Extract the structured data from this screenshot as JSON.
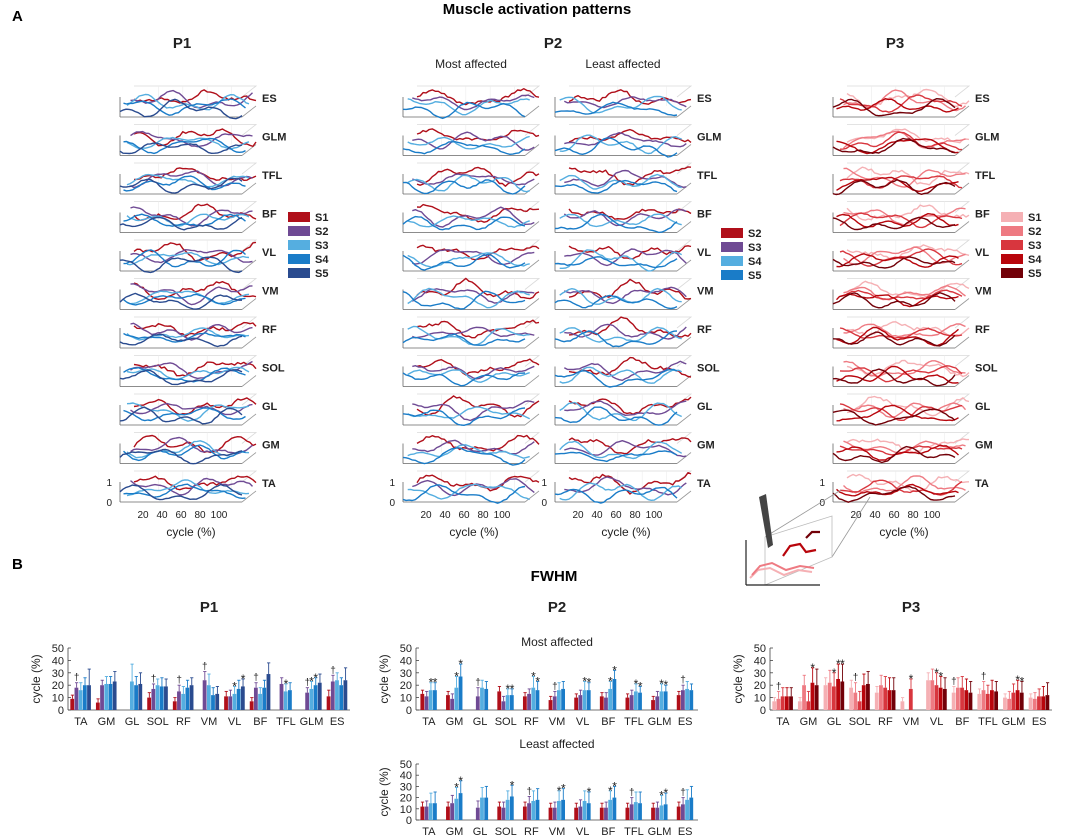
{
  "figure": {
    "section_a_letter": "A",
    "section_a_title": "Muscle activation patterns",
    "section_b_letter": "B",
    "section_b_title": "FWHM"
  },
  "chart_data": [
    {
      "id": "A-P1",
      "type": "line",
      "title": "P1",
      "subtitle": "",
      "muscles": [
        "ES",
        "GLM",
        "TFL",
        "BF",
        "VL",
        "VM",
        "RF",
        "SOL",
        "GL",
        "GM",
        "TA"
      ],
      "legend": [
        "S1",
        "S2",
        "S3",
        "S4",
        "S5"
      ],
      "xlabel": "cycle (%)",
      "xticks": [
        "20",
        "40",
        "60",
        "80",
        "100"
      ],
      "zticks": [
        "1",
        "0"
      ]
    },
    {
      "id": "A-P2-most",
      "type": "line",
      "title": "P2",
      "subtitle": "Most affected",
      "muscles": [
        "ES",
        "GLM",
        "TFL",
        "BF",
        "VL",
        "VM",
        "RF",
        "SOL",
        "GL",
        "GM",
        "TA"
      ],
      "legend": [
        "S2",
        "S3",
        "S4",
        "S5"
      ],
      "xlabel": "cycle (%)",
      "xticks": [
        "20",
        "40",
        "60",
        "80",
        "100"
      ],
      "zticks": [
        "1",
        "0"
      ]
    },
    {
      "id": "A-P2-least",
      "type": "line",
      "title": "",
      "subtitle": "Least affected",
      "muscles": [
        "ES",
        "GLM",
        "TFL",
        "BF",
        "VL",
        "VM",
        "RF",
        "SOL",
        "GL",
        "GM",
        "TA"
      ],
      "legend": [
        "S2",
        "S3",
        "S4",
        "S5"
      ],
      "xlabel": "cycle (%)",
      "xticks": [
        "20",
        "40",
        "60",
        "80",
        "100"
      ],
      "zticks": [
        "1",
        "0"
      ]
    },
    {
      "id": "A-P3",
      "type": "line",
      "title": "P3",
      "subtitle": "",
      "muscles": [
        "ES",
        "GLM",
        "TFL",
        "BF",
        "VL",
        "VM",
        "RF",
        "SOL",
        "GL",
        "GM",
        "TA"
      ],
      "legend": [
        "S1",
        "S2",
        "S3",
        "S4",
        "S5"
      ],
      "xlabel": "cycle (%)",
      "xticks": [
        "20",
        "40",
        "60",
        "80",
        "100"
      ],
      "zticks": [
        "1",
        "0"
      ]
    },
    {
      "id": "B-P1",
      "type": "bar",
      "title": "P1",
      "subtitle": "",
      "ylabel": "cycle (%)",
      "ylim": [
        0,
        50
      ],
      "yticks": [
        0,
        10,
        20,
        30,
        40,
        50
      ],
      "categories": [
        "TA",
        "GM",
        "GL",
        "SOL",
        "RF",
        "VM",
        "VL",
        "BF",
        "TFL",
        "GLM",
        "ES"
      ],
      "series": [
        {
          "name": "S1",
          "values": [
            9,
            6,
            null,
            10,
            7,
            null,
            11,
            7,
            null,
            null,
            11
          ]
        },
        {
          "name": "S2",
          "values": [
            18,
            20,
            null,
            17,
            15,
            24,
            11,
            18,
            21,
            14,
            23
          ]
        },
        {
          "name": "S3",
          "values": [
            16,
            21,
            23,
            20,
            13,
            20,
            13,
            13,
            15,
            17,
            24
          ]
        },
        {
          "name": "S4",
          "values": [
            20,
            21,
            20,
            19,
            18,
            12,
            17,
            18,
            16,
            20,
            20
          ]
        },
        {
          "name": "S5",
          "values": [
            20,
            23,
            21,
            19,
            20,
            13,
            19,
            29,
            null,
            22,
            24
          ]
        }
      ],
      "errors": [
        {
          "name": "S1",
          "values": [
            3,
            3,
            null,
            4,
            3,
            null,
            4,
            3,
            null,
            null,
            5
          ]
        },
        {
          "name": "S2",
          "values": [
            4,
            4,
            null,
            4,
            5,
            7,
            5,
            4,
            5,
            4,
            5
          ]
        },
        {
          "name": "S3",
          "values": [
            6,
            6,
            14,
            5,
            6,
            9,
            6,
            5,
            6,
            6,
            6
          ]
        },
        {
          "name": "S4",
          "values": [
            6,
            6,
            7,
            7,
            6,
            6,
            7,
            6,
            6,
            6,
            6
          ]
        },
        {
          "name": "S5",
          "values": [
            13,
            8,
            9,
            6,
            6,
            6,
            6,
            9,
            null,
            7,
            10
          ]
        }
      ],
      "annotations": [
        {
          "text": "†",
          "category": "TA",
          "series": "S2"
        },
        {
          "text": "†",
          "category": "SOL",
          "series": "S2"
        },
        {
          "text": "†",
          "category": "RF",
          "series": "S2"
        },
        {
          "text": "†",
          "category": "VM",
          "series": "S2"
        },
        {
          "text": "†",
          "category": "BF",
          "series": "S2"
        },
        {
          "text": "†",
          "category": "GLM",
          "series": "S2"
        },
        {
          "text": "†",
          "category": "ES",
          "series": "S2"
        },
        {
          "text": "*",
          "category": "VL",
          "series": "S3"
        },
        {
          "text": "*",
          "category": "VL",
          "series": "S5"
        },
        {
          "text": "*",
          "category": "TFL",
          "series": "S3"
        },
        {
          "text": "*",
          "category": "GLM",
          "series": "S3"
        },
        {
          "text": "*",
          "category": "GLM",
          "series": "S4"
        }
      ]
    },
    {
      "id": "B-P2-most",
      "type": "bar",
      "title": "P2",
      "subtitle": "Most affected",
      "ylabel": "cycle (%)",
      "ylim": [
        0,
        50
      ],
      "yticks": [
        0,
        10,
        20,
        30,
        40,
        50
      ],
      "categories": [
        "TA",
        "GM",
        "GL",
        "SOL",
        "RF",
        "VM",
        "VL",
        "BF",
        "TFL",
        "GLM",
        "ES"
      ],
      "series": [
        {
          "name": "S2",
          "values": [
            13,
            12,
            null,
            15,
            11,
            8,
            10,
            11,
            10,
            8,
            12
          ]
        },
        {
          "name": "S3",
          "values": [
            11,
            9,
            11,
            7,
            13,
            11,
            12,
            10,
            12,
            11,
            16
          ]
        },
        {
          "name": "S4",
          "values": [
            16,
            18,
            18,
            12,
            18,
            16,
            16,
            17,
            15,
            15,
            17
          ]
        },
        {
          "name": "S5",
          "values": [
            16,
            27,
            17,
            12,
            16,
            17,
            16,
            25,
            14,
            15,
            16
          ]
        }
      ],
      "errors": [
        {
          "name": "S2",
          "values": [
            3,
            3,
            null,
            4,
            3,
            3,
            3,
            3,
            3,
            3,
            3
          ]
        },
        {
          "name": "S3",
          "values": [
            4,
            4,
            7,
            4,
            4,
            4,
            4,
            4,
            4,
            4,
            4
          ]
        },
        {
          "name": "S4",
          "values": [
            6,
            9,
            6,
            5,
            9,
            6,
            7,
            6,
            6,
            6,
            6
          ]
        },
        {
          "name": "S5",
          "values": [
            6,
            10,
            6,
            5,
            7,
            6,
            6,
            7,
            5,
            5,
            5
          ]
        }
      ],
      "annotations": [
        {
          "text": "*",
          "category": "TA",
          "series": "S4"
        },
        {
          "text": "*",
          "category": "TA",
          "series": "S5"
        },
        {
          "text": "*",
          "category": "GM",
          "series": "S4"
        },
        {
          "text": "*",
          "category": "GM",
          "series": "S5"
        },
        {
          "text": "†",
          "category": "GL",
          "series": "S3"
        },
        {
          "text": "*",
          "category": "SOL",
          "series": "S4"
        },
        {
          "text": "*",
          "category": "SOL",
          "series": "S5"
        },
        {
          "text": "*",
          "category": "RF",
          "series": "S4"
        },
        {
          "text": "*",
          "category": "RF",
          "series": "S5"
        },
        {
          "text": "†",
          "category": "VM",
          "series": "S3"
        },
        {
          "text": "*",
          "category": "VL",
          "series": "S4"
        },
        {
          "text": "*",
          "category": "VL",
          "series": "S5"
        },
        {
          "text": "*",
          "category": "BF",
          "series": "S4"
        },
        {
          "text": "*",
          "category": "BF",
          "series": "S5"
        },
        {
          "text": "*",
          "category": "TFL",
          "series": "S4"
        },
        {
          "text": "*",
          "category": "TFL",
          "series": "S5"
        },
        {
          "text": "*",
          "category": "GLM",
          "series": "S4"
        },
        {
          "text": "*",
          "category": "GLM",
          "series": "S5"
        },
        {
          "text": "†",
          "category": "ES",
          "series": "S3"
        }
      ]
    },
    {
      "id": "B-P2-least",
      "type": "bar",
      "title": "",
      "subtitle": "Least affected",
      "ylabel": "cycle (%)",
      "ylim": [
        0,
        50
      ],
      "yticks": [
        0,
        10,
        20,
        30,
        40,
        50
      ],
      "categories": [
        "TA",
        "GM",
        "GL",
        "SOL",
        "RF",
        "VM",
        "VL",
        "BF",
        "TFL",
        "GLM",
        "ES"
      ],
      "series": [
        {
          "name": "S2",
          "values": [
            12,
            12,
            null,
            12,
            12,
            11,
            11,
            11,
            11,
            11,
            12
          ]
        },
        {
          "name": "S3",
          "values": [
            12,
            15,
            11,
            11,
            15,
            11,
            12,
            11,
            14,
            11,
            14
          ]
        },
        {
          "name": "S4",
          "values": [
            15,
            19,
            20,
            18,
            17,
            17,
            17,
            18,
            16,
            13,
            18
          ]
        },
        {
          "name": "S5",
          "values": [
            15,
            24,
            20,
            21,
            18,
            18,
            15,
            20,
            15,
            14,
            20
          ]
        }
      ],
      "errors": [
        {
          "name": "S2",
          "values": [
            4,
            4,
            null,
            4,
            4,
            4,
            4,
            4,
            4,
            4,
            4
          ]
        },
        {
          "name": "S3",
          "values": [
            5,
            7,
            6,
            5,
            6,
            5,
            6,
            5,
            6,
            5,
            6
          ]
        },
        {
          "name": "S4",
          "values": [
            9,
            10,
            9,
            8,
            9,
            9,
            9,
            8,
            9,
            9,
            9
          ]
        },
        {
          "name": "S5",
          "values": [
            10,
            11,
            10,
            10,
            10,
            10,
            10,
            10,
            10,
            10,
            10
          ]
        }
      ],
      "annotations": [
        {
          "text": "*",
          "category": "GM",
          "series": "S4"
        },
        {
          "text": "*",
          "category": "GM",
          "series": "S5"
        },
        {
          "text": "*",
          "category": "SOL",
          "series": "S5"
        },
        {
          "text": "†",
          "category": "RF",
          "series": "S3"
        },
        {
          "text": "*",
          "category": "VM",
          "series": "S4"
        },
        {
          "text": "*",
          "category": "VM",
          "series": "S5"
        },
        {
          "text": "*",
          "category": "VL",
          "series": "S5"
        },
        {
          "text": "*",
          "category": "BF",
          "series": "S4"
        },
        {
          "text": "*",
          "category": "BF",
          "series": "S5"
        },
        {
          "text": "†",
          "category": "TFL",
          "series": "S3"
        },
        {
          "text": "*",
          "category": "GLM",
          "series": "S4"
        },
        {
          "text": "*",
          "category": "GLM",
          "series": "S5"
        },
        {
          "text": "†",
          "category": "ES",
          "series": "S3"
        }
      ]
    },
    {
      "id": "B-P3",
      "type": "bar",
      "title": "P3",
      "subtitle": "",
      "ylabel": "cycle (%)",
      "ylim": [
        0,
        50
      ],
      "yticks": [
        0,
        10,
        20,
        30,
        40,
        50
      ],
      "categories": [
        "TA",
        "GM",
        "GL",
        "SOL",
        "RF",
        "VM",
        "VL",
        "BF",
        "TFL",
        "GLM",
        "ES"
      ],
      "series": [
        {
          "name": "S1",
          "values": [
            7,
            7,
            20,
            18,
            14,
            7,
            24,
            14,
            13,
            10,
            10
          ]
        },
        {
          "name": "S2",
          "values": [
            9,
            20,
            22,
            14,
            20,
            null,
            24,
            18,
            16,
            9,
            9
          ]
        },
        {
          "name": "S3",
          "values": [
            11,
            7,
            19,
            7,
            18,
            17,
            20,
            18,
            13,
            14,
            11
          ]
        },
        {
          "name": "S4",
          "values": [
            11,
            22,
            25,
            20,
            16,
            null,
            18,
            16,
            16,
            16,
            11
          ]
        },
        {
          "name": "S5",
          "values": [
            11,
            20,
            23,
            21,
            16,
            null,
            17,
            14,
            15,
            14,
            12
          ]
        }
      ],
      "errors": [
        {
          "name": "S1",
          "values": [
            3,
            3,
            6,
            6,
            5,
            3,
            6,
            5,
            4,
            3,
            3
          ]
        },
        {
          "name": "S2",
          "values": [
            6,
            8,
            10,
            8,
            8,
            null,
            9,
            8,
            7,
            6,
            5
          ]
        },
        {
          "name": "S3",
          "values": [
            7,
            8,
            11,
            8,
            9,
            8,
            10,
            9,
            7,
            7,
            6
          ]
        },
        {
          "name": "S4",
          "values": [
            7,
            12,
            12,
            9,
            10,
            null,
            9,
            9,
            8,
            8,
            8
          ]
        },
        {
          "name": "S5",
          "values": [
            7,
            13,
            14,
            10,
            10,
            null,
            9,
            9,
            8,
            9,
            10
          ]
        }
      ],
      "annotations": [
        {
          "text": "†",
          "category": "TA",
          "series": "S2"
        },
        {
          "text": "*",
          "category": "GM",
          "series": "S4"
        },
        {
          "text": "*",
          "category": "GL",
          "series": "S3"
        },
        {
          "text": "*",
          "category": "GL",
          "series": "S4"
        },
        {
          "text": "*",
          "category": "GL",
          "series": "S5"
        },
        {
          "text": "†",
          "category": "SOL",
          "series": "S2"
        },
        {
          "text": "*",
          "category": "VM",
          "series": "S3"
        },
        {
          "text": "*",
          "category": "VL",
          "series": "S3"
        },
        {
          "text": "*",
          "category": "VL",
          "series": "S4"
        },
        {
          "text": "†",
          "category": "BF",
          "series": "S1"
        },
        {
          "text": "†",
          "category": "TFL",
          "series": "S2"
        },
        {
          "text": "*",
          "category": "GLM",
          "series": "S4"
        },
        {
          "text": "*",
          "category": "GLM",
          "series": "S5"
        }
      ]
    }
  ],
  "colors": {
    "blue_set": [
      "#b00f1a",
      "#6f4a94",
      "#55aee0",
      "#1a7cc8",
      "#2a4b8f"
    ],
    "p2_set": [
      "#b00f1a",
      "#6f4a94",
      "#55aee0",
      "#1a7cc8"
    ],
    "red_set": [
      "#f5b0b4",
      "#ee7a82",
      "#d8363e",
      "#b8050c",
      "#720008"
    ],
    "grid": "#dadada",
    "axis": "#444444"
  }
}
